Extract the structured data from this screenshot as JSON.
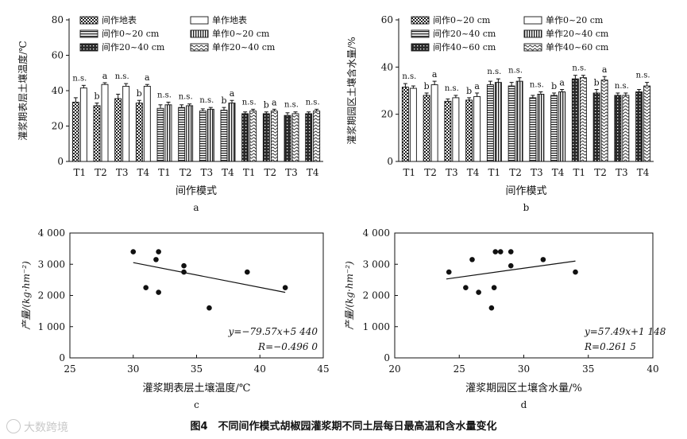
{
  "figure": {
    "caption": "图4　不同间作模式胡椒园灌浆期不同土层每日最高温和含水量变化",
    "watermark": "大数跨境"
  },
  "chart_data": [
    {
      "panel": "a",
      "type": "bar",
      "xlabel": "间作模式",
      "ylabel": "灌浆期表层土壤温度/℃",
      "ylim": [
        0,
        80
      ],
      "yticks": [
        0,
        20,
        40,
        60,
        80
      ],
      "categories": [
        "T1",
        "T2",
        "T3",
        "T4",
        "T1",
        "T2",
        "T3",
        "T4",
        "T1",
        "T2",
        "T3",
        "T4"
      ],
      "groups": [
        {
          "label": "地表",
          "category_indices": [
            0,
            1,
            2,
            3
          ]
        },
        {
          "label": "0~20 cm",
          "category_indices": [
            4,
            5,
            6,
            7
          ]
        },
        {
          "label": "20~40 cm",
          "category_indices": [
            8,
            9,
            10,
            11
          ]
        }
      ],
      "legend": [
        "间作地表",
        "单作地表",
        "间作0~20 cm",
        "单作0~20 cm",
        "间作20~40 cm",
        "单作20~40 cm"
      ],
      "series": [
        {
          "name": "间作",
          "values": [
            33.5,
            31.5,
            35.5,
            33.0,
            30.0,
            30.5,
            28.5,
            29.0,
            27.0,
            27.0,
            26.0,
            27.0
          ],
          "errors": [
            2.5,
            1.5,
            2.5,
            1.5,
            2.0,
            1.5,
            1.2,
            1.5,
            1.0,
            1.0,
            1.5,
            1.0
          ]
        },
        {
          "name": "单作",
          "values": [
            41.5,
            43.5,
            42.5,
            42.5,
            32.0,
            31.5,
            29.5,
            33.0,
            28.5,
            28.5,
            27.0,
            28.5
          ],
          "errors": [
            1.5,
            1.0,
            1.5,
            1.0,
            1.5,
            1.0,
            1.0,
            1.5,
            1.0,
            1.0,
            1.0,
            1.0
          ]
        }
      ],
      "significance": [
        [
          "n.s.",
          "n.s."
        ],
        [
          "b",
          "a"
        ],
        [
          "n.s.",
          "n.s."
        ],
        [
          "b",
          "a"
        ],
        [
          "n.s.",
          "n.s."
        ],
        [
          "n.s.",
          "n.s."
        ],
        [
          "n.s.",
          "n.s."
        ],
        [
          "b",
          "a"
        ],
        [
          "n.s.",
          "n.s."
        ],
        [
          "b",
          "a"
        ],
        [
          "n.s.",
          "n.s."
        ],
        [
          "n.s.",
          "n.s."
        ]
      ]
    },
    {
      "panel": "b",
      "type": "bar",
      "xlabel": "间作模式",
      "ylabel": "灌浆期园区土壤含水量/%",
      "ylim": [
        0,
        60
      ],
      "yticks": [
        0,
        20,
        40,
        60
      ],
      "categories": [
        "T1",
        "T2",
        "T3",
        "T4",
        "T1",
        "T2",
        "T3",
        "T4",
        "T1",
        "T2",
        "T3",
        "T4"
      ],
      "groups": [
        {
          "label": "0~20 cm",
          "category_indices": [
            0,
            1,
            2,
            3
          ]
        },
        {
          "label": "20~40 cm",
          "category_indices": [
            4,
            5,
            6,
            7
          ]
        },
        {
          "label": "40~60 cm",
          "category_indices": [
            8,
            9,
            10,
            11
          ]
        }
      ],
      "legend": [
        "间作0~20 cm",
        "单作0~20 cm",
        "间作20~40 cm",
        "单作20~40 cm",
        "间作40~60 cm",
        "单作40~60 cm"
      ],
      "series": [
        {
          "name": "间作",
          "values": [
            31.5,
            28.0,
            25.5,
            26.0,
            32.5,
            32.0,
            27.0,
            28.0,
            35.0,
            29.0,
            28.0,
            29.5
          ],
          "errors": [
            1.5,
            1.0,
            1.0,
            1.0,
            1.5,
            1.5,
            1.0,
            1.0,
            1.5,
            1.5,
            1.0,
            1.0
          ]
        },
        {
          "name": "单作",
          "values": [
            31.0,
            32.5,
            27.0,
            27.5,
            33.5,
            34.0,
            28.5,
            29.5,
            35.5,
            34.5,
            28.0,
            32.0
          ],
          "errors": [
            1.0,
            1.5,
            1.0,
            1.5,
            1.5,
            1.5,
            1.0,
            1.0,
            1.0,
            1.5,
            1.0,
            1.5
          ]
        }
      ],
      "significance": [
        [
          "n.s.",
          "n.s."
        ],
        [
          "b",
          "a"
        ],
        [
          "n.s.",
          "n.s."
        ],
        [
          "b",
          "a"
        ],
        [
          "n.s.",
          "n.s."
        ],
        [
          "n.s.",
          "n.s."
        ],
        [
          "n.s.",
          "n.s."
        ],
        [
          "b",
          "a"
        ],
        [
          "n.s.",
          "n.s."
        ],
        [
          "b",
          "a"
        ],
        [
          "n.s.",
          "n.s."
        ],
        [
          "n.s.",
          "n.s."
        ]
      ]
    },
    {
      "panel": "c",
      "type": "scatter",
      "xlabel": "灌浆期表层土壤温度/℃",
      "ylabel": "产量/(kg·hm⁻²)",
      "xlim": [
        25,
        45
      ],
      "xticks": [
        25,
        30,
        35,
        40,
        45
      ],
      "ylim": [
        0,
        4000
      ],
      "yticks": [
        0,
        1000,
        2000,
        3000,
        4000
      ],
      "ytick_labels": [
        "0",
        "1 000",
        "2 000",
        "3 000",
        "4 000"
      ],
      "points": [
        [
          30,
          3400
        ],
        [
          31,
          2250
        ],
        [
          31.8,
          3150
        ],
        [
          32,
          3400
        ],
        [
          32,
          2100
        ],
        [
          34,
          2950
        ],
        [
          34,
          2750
        ],
        [
          36,
          1600
        ],
        [
          39,
          2750
        ],
        [
          42,
          2250
        ]
      ],
      "fit": {
        "slope": -79.57,
        "intercept": 5440,
        "x_range": [
          30,
          42
        ]
      },
      "equation_label": "y=−79.57x+5 440",
      "r_label": "R=−0.496 0"
    },
    {
      "panel": "d",
      "type": "scatter",
      "xlabel": "灌浆期园区土壤含水量/%",
      "ylabel": "产量/(kg·hm⁻²)",
      "xlim": [
        20,
        40
      ],
      "xticks": [
        20,
        25,
        30,
        35,
        40
      ],
      "ylim": [
        0,
        4000
      ],
      "yticks": [
        0,
        1000,
        2000,
        3000,
        4000
      ],
      "ytick_labels": [
        "0",
        "1 000",
        "2 000",
        "3 000",
        "4 000"
      ],
      "points": [
        [
          24.2,
          2750
        ],
        [
          25.5,
          2250
        ],
        [
          26,
          3150
        ],
        [
          26.5,
          2100
        ],
        [
          27.5,
          1600
        ],
        [
          27.7,
          2250
        ],
        [
          27.8,
          3400
        ],
        [
          28.2,
          3400
        ],
        [
          29,
          3400
        ],
        [
          29,
          2950
        ],
        [
          31.5,
          3150
        ],
        [
          34,
          2750
        ]
      ],
      "fit": {
        "slope": 57.49,
        "intercept": 1148,
        "x_range": [
          24,
          34
        ]
      },
      "equation_label": "y=57.49x+1 148",
      "r_label": "R=0.261 5"
    }
  ]
}
